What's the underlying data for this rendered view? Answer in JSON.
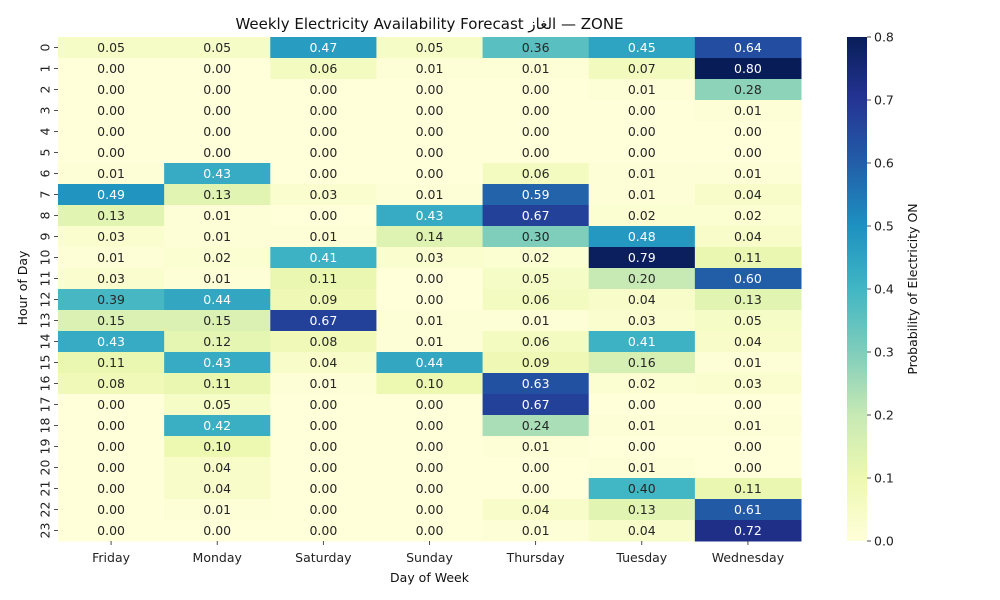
{
  "chart_data": {
    "type": "heatmap",
    "title": "Weekly Electricity Availability Forecast الغاز — ZONE",
    "xlabel": "Day of Week",
    "ylabel": "Hour of Day",
    "colorbar_label": "Probability of Electricity ON",
    "colormap": "YlGnBu",
    "vmin": 0.0,
    "vmax": 0.8,
    "colorbar_ticks": [
      "0.0",
      "0.1",
      "0.2",
      "0.3",
      "0.4",
      "0.5",
      "0.6",
      "0.7",
      "0.8"
    ],
    "x_categories": [
      "Friday",
      "Monday",
      "Saturday",
      "Sunday",
      "Thursday",
      "Tuesday",
      "Wednesday"
    ],
    "y_categories": [
      "0",
      "1",
      "2",
      "3",
      "4",
      "5",
      "6",
      "7",
      "8",
      "9",
      "10",
      "11",
      "12",
      "13",
      "14",
      "15",
      "16",
      "17",
      "18",
      "19",
      "20",
      "21",
      "22",
      "23"
    ],
    "values": [
      [
        0.05,
        0.05,
        0.47,
        0.05,
        0.36,
        0.45,
        0.64
      ],
      [
        0.0,
        0.0,
        0.06,
        0.01,
        0.01,
        0.07,
        0.8
      ],
      [
        0.0,
        0.0,
        0.0,
        0.0,
        0.0,
        0.01,
        0.28
      ],
      [
        0.0,
        0.0,
        0.0,
        0.0,
        0.0,
        0.0,
        0.01
      ],
      [
        0.0,
        0.0,
        0.0,
        0.0,
        0.0,
        0.0,
        0.0
      ],
      [
        0.0,
        0.0,
        0.0,
        0.0,
        0.0,
        0.0,
        0.0
      ],
      [
        0.01,
        0.43,
        0.0,
        0.0,
        0.06,
        0.01,
        0.01
      ],
      [
        0.49,
        0.13,
        0.03,
        0.01,
        0.59,
        0.01,
        0.04
      ],
      [
        0.13,
        0.01,
        0.0,
        0.43,
        0.67,
        0.02,
        0.02
      ],
      [
        0.03,
        0.01,
        0.01,
        0.14,
        0.3,
        0.48,
        0.04
      ],
      [
        0.01,
        0.02,
        0.41,
        0.03,
        0.02,
        0.79,
        0.11
      ],
      [
        0.03,
        0.01,
        0.11,
        0.0,
        0.05,
        0.2,
        0.6
      ],
      [
        0.39,
        0.44,
        0.09,
        0.0,
        0.06,
        0.04,
        0.13
      ],
      [
        0.15,
        0.15,
        0.67,
        0.01,
        0.01,
        0.03,
        0.05
      ],
      [
        0.43,
        0.12,
        0.08,
        0.01,
        0.06,
        0.41,
        0.04
      ],
      [
        0.11,
        0.43,
        0.04,
        0.44,
        0.09,
        0.16,
        0.01
      ],
      [
        0.08,
        0.11,
        0.01,
        0.1,
        0.63,
        0.02,
        0.03
      ],
      [
        0.0,
        0.05,
        0.0,
        0.0,
        0.67,
        0.0,
        0.0
      ],
      [
        0.0,
        0.42,
        0.0,
        0.0,
        0.24,
        0.01,
        0.01
      ],
      [
        0.0,
        0.1,
        0.0,
        0.0,
        0.01,
        0.0,
        0.0
      ],
      [
        0.0,
        0.04,
        0.0,
        0.0,
        0.0,
        0.01,
        0.0
      ],
      [
        0.0,
        0.04,
        0.0,
        0.0,
        0.0,
        0.4,
        0.11
      ],
      [
        0.0,
        0.01,
        0.0,
        0.0,
        0.04,
        0.13,
        0.61
      ],
      [
        0.0,
        0.0,
        0.0,
        0.0,
        0.01,
        0.04,
        0.72
      ]
    ]
  }
}
